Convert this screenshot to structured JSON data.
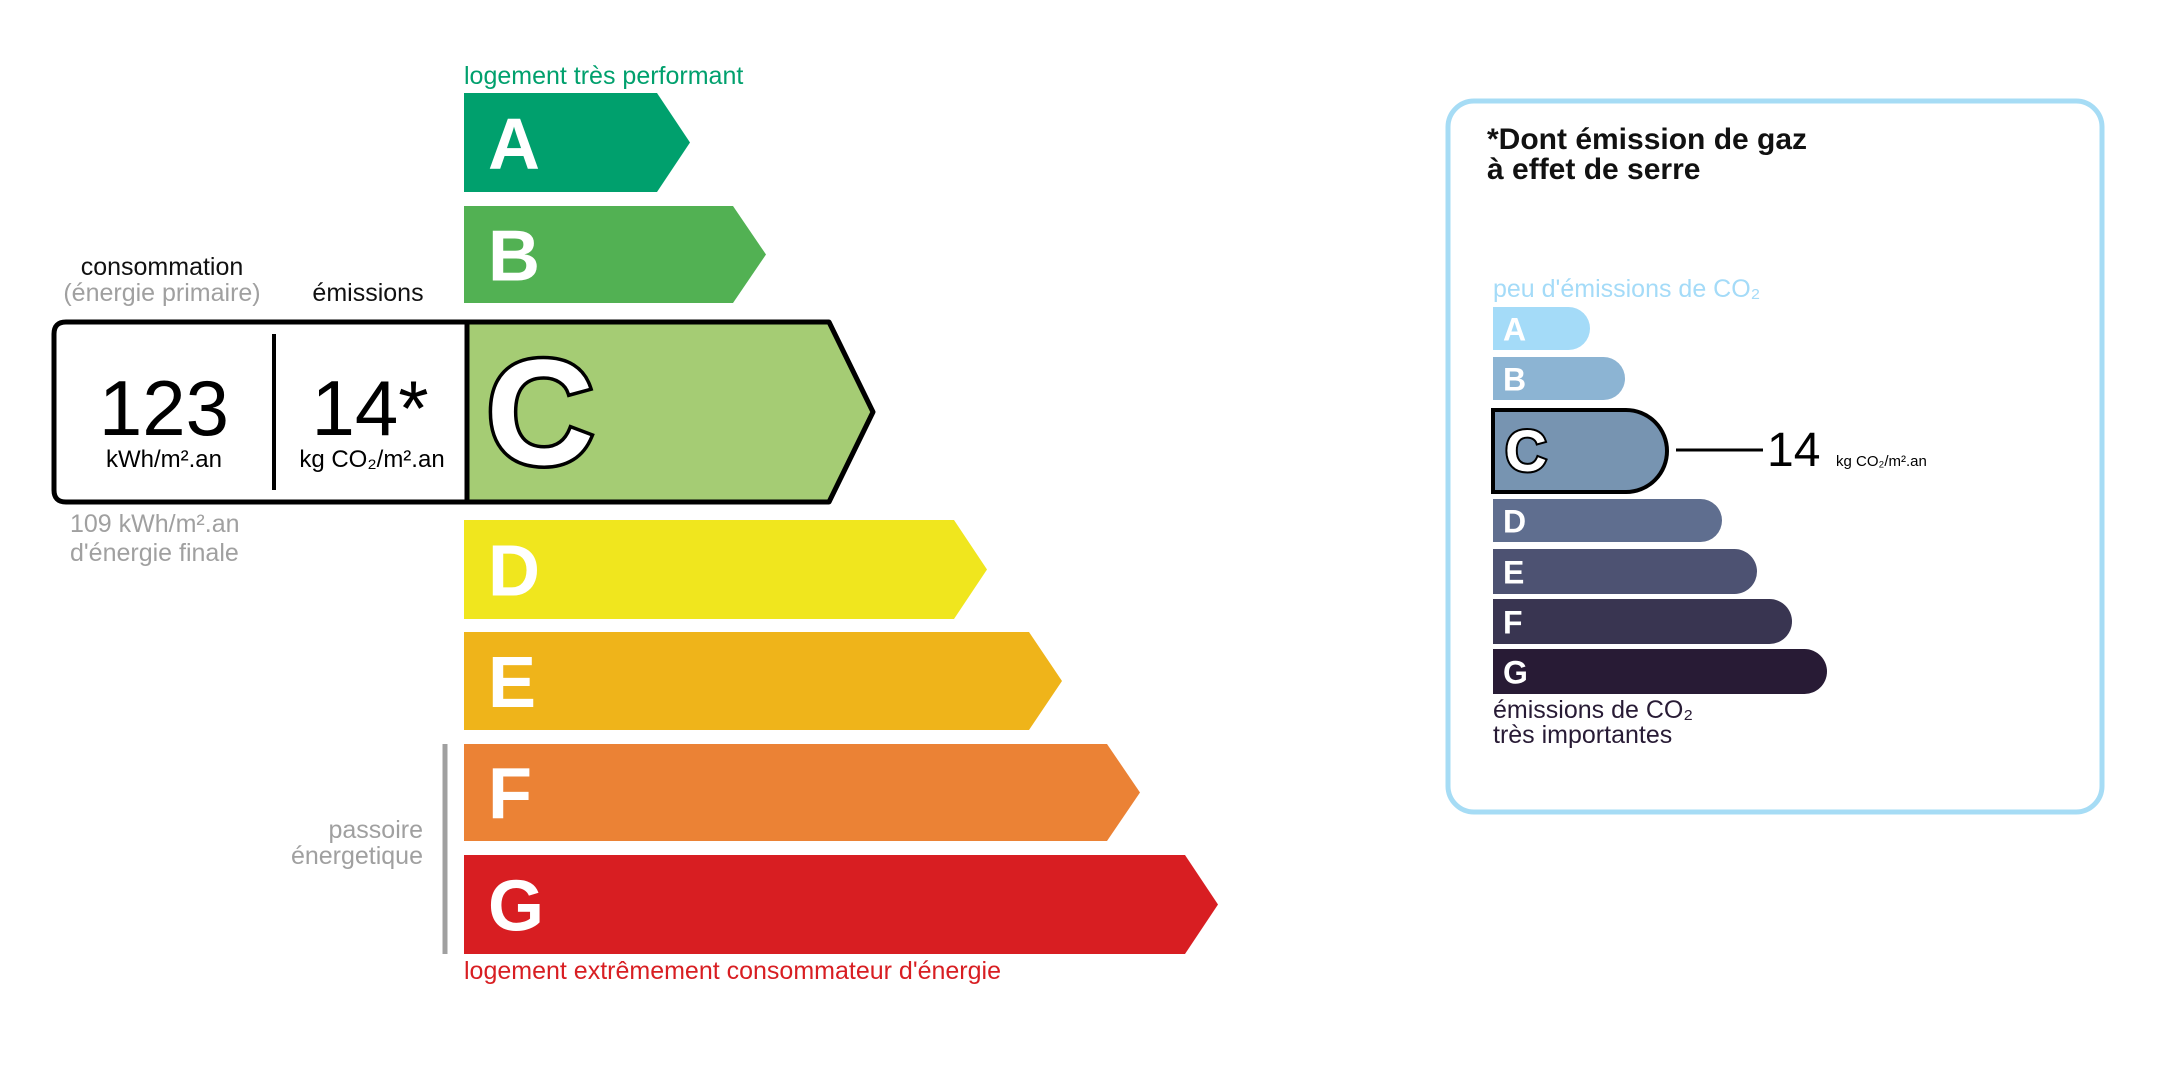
{
  "energy": {
    "top_label": "logement très performant",
    "bottom_label": "logement extrêmement consommateur d'énergie",
    "consumption_label": "consommation",
    "consumption_sub": "(énergie primaire)",
    "emissions_label": "émissions",
    "consumption_value": "123",
    "consumption_unit": "kWh/m².an",
    "emissions_value": "14*",
    "emissions_unit": "kg CO₂/m².an",
    "final_energy_value": "109 kWh/m².an",
    "final_energy_label": "d'énergie finale",
    "passoire_line1": "passoire",
    "passoire_line2": "énergetique",
    "current_class": "C",
    "top_color": "#00a06d",
    "bottom_color": "#d81e22",
    "classes": [
      {
        "letter": "A",
        "color": "#00a06d"
      },
      {
        "letter": "B",
        "color": "#52b153"
      },
      {
        "letter": "C",
        "color": "#a5cc74"
      },
      {
        "letter": "D",
        "color": "#f0e61e"
      },
      {
        "letter": "E",
        "color": "#efb41a"
      },
      {
        "letter": "F",
        "color": "#eb8235"
      },
      {
        "letter": "G",
        "color": "#d81e22"
      }
    ]
  },
  "ges": {
    "title_line1": "*Dont émission de gaz",
    "title_line2": "à effet de serre",
    "top_label": "peu d'émissions de CO₂",
    "bottom_line1": "émissions de CO₂",
    "bottom_line2": "très importantes",
    "value": "14",
    "unit": "kg CO₂/m².an",
    "current_class": "C",
    "border_color": "#a6dcf5",
    "classes": [
      {
        "letter": "A",
        "color": "#a4dbf8"
      },
      {
        "letter": "B",
        "color": "#8cb4d3"
      },
      {
        "letter": "C",
        "color": "#7794b1"
      },
      {
        "letter": "D",
        "color": "#5f6e8f"
      },
      {
        "letter": "E",
        "color": "#4d5272"
      },
      {
        "letter": "F",
        "color": "#393551"
      },
      {
        "letter": "G",
        "color": "#281b35"
      }
    ]
  }
}
